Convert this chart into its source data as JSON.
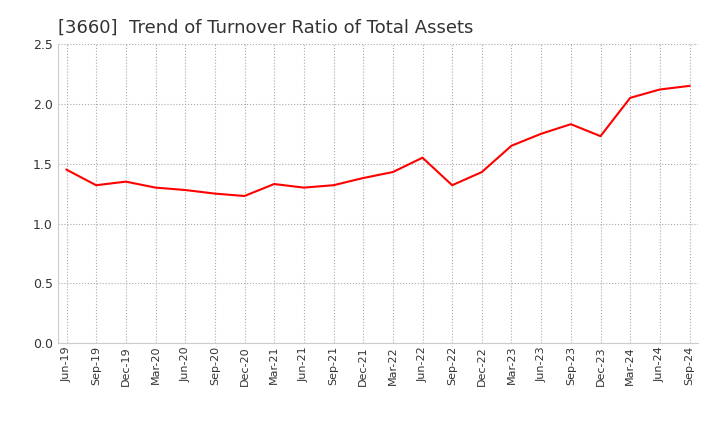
{
  "title": "[3660]  Trend of Turnover Ratio of Total Assets",
  "title_fontsize": 13,
  "title_color": "#333333",
  "line_color": "#ff0000",
  "background_color": "#ffffff",
  "grid_color": "#aaaaaa",
  "ylim": [
    0.0,
    2.5
  ],
  "yticks": [
    0.0,
    0.5,
    1.0,
    1.5,
    2.0,
    2.5
  ],
  "x_labels": [
    "Jun-19",
    "Sep-19",
    "Dec-19",
    "Mar-20",
    "Jun-20",
    "Sep-20",
    "Dec-20",
    "Mar-21",
    "Jun-21",
    "Sep-21",
    "Dec-21",
    "Mar-22",
    "Jun-22",
    "Sep-22",
    "Dec-22",
    "Mar-23",
    "Jun-23",
    "Sep-23",
    "Dec-23",
    "Mar-24",
    "Jun-24",
    "Sep-24"
  ],
  "values": [
    1.45,
    1.32,
    1.35,
    1.3,
    1.28,
    1.25,
    1.23,
    1.33,
    1.3,
    1.32,
    1.38,
    1.43,
    1.55,
    1.32,
    1.43,
    1.65,
    1.75,
    1.83,
    1.73,
    2.05,
    2.12,
    2.15
  ]
}
